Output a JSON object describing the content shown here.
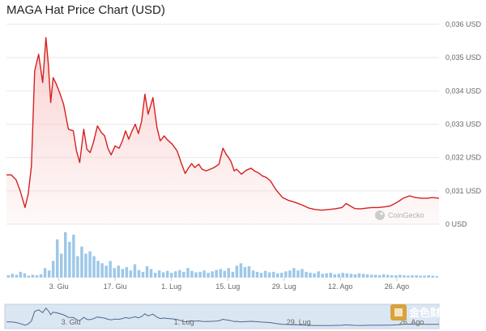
{
  "title": "MAGA Hat Price Chart (USD)",
  "watermark": "CoinGecko",
  "brand_overlay": "金色财经",
  "colors": {
    "price_line": "#d62020",
    "area_fill": "#f9c9c9",
    "volume_bar": "#7db6e0",
    "grid": "#e8e8e8",
    "navigator_fill": "#dbe6f3",
    "navigator_line": "#4a6a8a"
  },
  "chart_data": {
    "type": "line",
    "title": "MAGA Hat Price Chart (USD)",
    "xlabel": "",
    "ylabel": "",
    "ylim": [
      0.03,
      0.036
    ],
    "y_tick_labels": [
      "0 USD",
      "0,031 USD",
      "0,032 USD",
      "0,033 USD",
      "0,034 USD",
      "0,035 USD",
      "0,036 USD"
    ],
    "x_tick_labels": [
      "3. Giu",
      "17. Giu",
      "1. Lug",
      "15. Lug",
      "29. Lug",
      "12. Ago",
      "26. Ago"
    ],
    "x_range_days": [
      -13.0,
      94.5
    ],
    "x_tick_days": [
      0,
      14,
      28,
      42,
      56,
      70,
      84
    ],
    "grid": true,
    "legend": "none",
    "series": [
      {
        "x": [
          -13.0,
          -11.8,
          -10.6,
          -9.6,
          -8.4,
          -7.6,
          -6.8,
          -6.0,
          -5.0,
          -4.0,
          -3.2,
          -2.6,
          -2.0,
          -1.4,
          -0.6,
          0.2,
          1.2,
          2.4,
          3.6,
          4.4,
          5.2,
          6.2,
          7.0,
          7.8,
          8.6,
          9.6,
          10.6,
          11.4,
          12.2,
          13.0,
          14.0,
          15.0,
          15.8,
          16.6,
          17.4,
          18.2,
          19.0,
          19.8,
          20.6,
          21.4,
          22.2,
          23.4,
          24.4,
          25.2,
          26.2,
          27.0,
          28.2,
          29.4,
          30.4,
          31.4,
          32.2,
          33.0,
          33.8,
          34.8,
          35.6,
          36.6,
          37.6,
          38.6,
          39.8,
          40.8,
          41.6,
          42.2,
          42.8,
          43.6,
          44.2,
          45.4,
          46.6,
          47.8,
          48.6,
          49.6,
          50.6,
          51.6,
          52.6,
          54.0,
          55.6,
          57.0,
          58.6,
          60.4,
          62.2,
          63.8,
          65.4,
          67.0,
          68.6,
          70.4,
          71.4,
          72.4,
          73.6,
          75.0,
          76.4,
          77.8,
          79.4,
          81.0,
          82.4,
          83.2,
          84.4,
          85.6,
          87.2,
          88.6,
          90.2,
          91.6,
          92.8,
          94.5
        ],
        "y": [
          0.03148,
          0.03148,
          0.03133,
          0.031,
          0.0305,
          0.0309,
          0.03175,
          0.0346,
          0.0351,
          0.03425,
          0.0356,
          0.0348,
          0.03365,
          0.0344,
          0.0342,
          0.03395,
          0.0336,
          0.03285,
          0.0328,
          0.0322,
          0.03185,
          0.03285,
          0.03225,
          0.03215,
          0.03245,
          0.03295,
          0.03275,
          0.03265,
          0.03228,
          0.03208,
          0.03235,
          0.03228,
          0.0325,
          0.0328,
          0.03255,
          0.0328,
          0.033,
          0.03272,
          0.0331,
          0.0339,
          0.0333,
          0.0338,
          0.0329,
          0.0325,
          0.03265,
          0.03253,
          0.0324,
          0.0322,
          0.03185,
          0.03152,
          0.03168,
          0.03182,
          0.0317,
          0.0318,
          0.03165,
          0.0316,
          0.03165,
          0.0317,
          0.0318,
          0.03228,
          0.0321,
          0.032,
          0.03188,
          0.0316,
          0.03165,
          0.0315,
          0.03162,
          0.03168,
          0.0316,
          0.03154,
          0.03145,
          0.0314,
          0.0313,
          0.03103,
          0.0308,
          0.03072,
          0.03066,
          0.03058,
          0.03048,
          0.03044,
          0.03042,
          0.03044,
          0.03046,
          0.0305,
          0.03062,
          0.03055,
          0.03047,
          0.03046,
          0.03048,
          0.0305,
          0.0305,
          0.03052,
          0.03055,
          0.0306,
          0.03068,
          0.03078,
          0.03085,
          0.0308,
          0.03078,
          0.03078,
          0.0308,
          0.03078
        ]
      }
    ],
    "volume": {
      "values": [
        0.5,
        0.8,
        0.6,
        1.2,
        0.9,
        0.4,
        0.6,
        0.5,
        0.7,
        2.0,
        1.5,
        3.5,
        8.0,
        5.0,
        9.5,
        7.5,
        9.0,
        4.5,
        6.5,
        5.0,
        5.5,
        4.5,
        3.5,
        3.0,
        2.5,
        3.5,
        2.0,
        2.5,
        1.8,
        2.2,
        1.5,
        2.8,
        1.6,
        1.2,
        2.4,
        1.8,
        1.0,
        1.5,
        1.1,
        1.4,
        1.0,
        1.3,
        1.6,
        1.2,
        2.0,
        1.4,
        1.1,
        1.2,
        1.5,
        1.0,
        1.3,
        1.6,
        1.8,
        1.4,
        2.0,
        1.2,
        2.5,
        3.0,
        2.2,
        2.4,
        1.5,
        1.2,
        1.0,
        1.4,
        1.1,
        1.2,
        0.9,
        1.0,
        1.3,
        1.5,
        2.0,
        1.5,
        1.8,
        1.2,
        1.0,
        0.9,
        1.3,
        0.8,
        0.9,
        1.0,
        0.7,
        0.8,
        1.0,
        0.9,
        0.8,
        0.7,
        0.9,
        0.8,
        0.7,
        0.6,
        0.6,
        0.5,
        0.7,
        0.6,
        0.5,
        0.5,
        0.6,
        0.5,
        0.4,
        0.5,
        0.5,
        0.4,
        0.4,
        0.5,
        0.4,
        0.3
      ]
    },
    "navigator": {
      "x_tick_labels": [
        "3. Giu",
        "1. Lug",
        "29. Lug",
        "26. Ago"
      ]
    }
  }
}
